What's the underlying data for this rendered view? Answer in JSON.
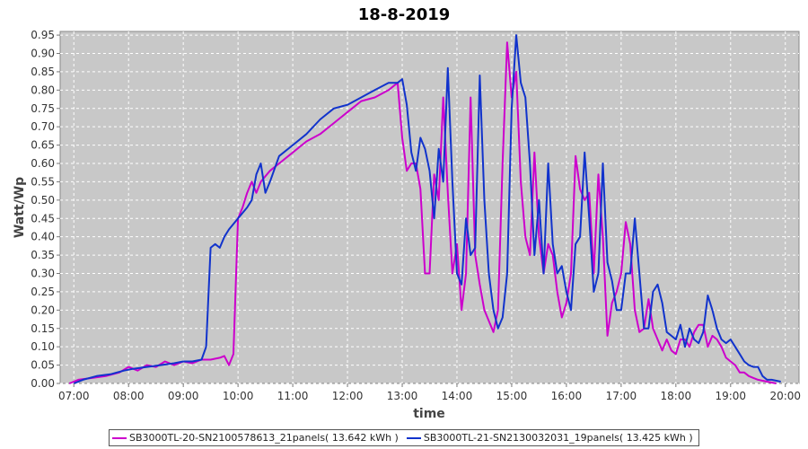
{
  "chart_data": {
    "type": "line",
    "title": "18-8-2019",
    "xlabel": "time",
    "ylabel": "Watt/Wp",
    "xlim": [
      "06:45",
      "20:15"
    ],
    "ylim": [
      0,
      0.96
    ],
    "x_ticks": [
      "07:00",
      "08:00",
      "09:00",
      "10:00",
      "11:00",
      "12:00",
      "13:00",
      "14:00",
      "15:00",
      "16:00",
      "17:00",
      "18:00",
      "19:00",
      "20:00"
    ],
    "y_ticks": [
      "0.00",
      "0.05",
      "0.10",
      "0.15",
      "0.20",
      "0.25",
      "0.30",
      "0.35",
      "0.40",
      "0.45",
      "0.50",
      "0.55",
      "0.60",
      "0.65",
      "0.70",
      "0.75",
      "0.80",
      "0.85",
      "0.90",
      "0.95"
    ],
    "grid": true,
    "legend_position": "bottom",
    "background": "#c8c8c8",
    "series": [
      {
        "name": "SB3000TL-20-SN2100578613_21panels( 13.642 kWh )",
        "color": "#cc00cc",
        "points": [
          [
            "06:55",
            0.0
          ],
          [
            "07:05",
            0.01
          ],
          [
            "07:20",
            0.015
          ],
          [
            "07:35",
            0.02
          ],
          [
            "07:50",
            0.03
          ],
          [
            "08:00",
            0.045
          ],
          [
            "08:10",
            0.035
          ],
          [
            "08:20",
            0.05
          ],
          [
            "08:30",
            0.045
          ],
          [
            "08:40",
            0.06
          ],
          [
            "08:50",
            0.05
          ],
          [
            "09:00",
            0.06
          ],
          [
            "09:10",
            0.055
          ],
          [
            "09:20",
            0.065
          ],
          [
            "09:30",
            0.065
          ],
          [
            "09:40",
            0.07
          ],
          [
            "09:45",
            0.075
          ],
          [
            "09:50",
            0.05
          ],
          [
            "09:55",
            0.08
          ],
          [
            "10:00",
            0.45
          ],
          [
            "10:05",
            0.48
          ],
          [
            "10:10",
            0.52
          ],
          [
            "10:15",
            0.55
          ],
          [
            "10:20",
            0.52
          ],
          [
            "10:25",
            0.55
          ],
          [
            "10:35",
            0.58
          ],
          [
            "10:45",
            0.6
          ],
          [
            "11:00",
            0.63
          ],
          [
            "11:15",
            0.66
          ],
          [
            "11:30",
            0.68
          ],
          [
            "11:45",
            0.71
          ],
          [
            "12:00",
            0.74
          ],
          [
            "12:15",
            0.77
          ],
          [
            "12:30",
            0.78
          ],
          [
            "12:45",
            0.8
          ],
          [
            "12:55",
            0.82
          ],
          [
            "13:00",
            0.67
          ],
          [
            "13:05",
            0.58
          ],
          [
            "13:10",
            0.6
          ],
          [
            "13:15",
            0.6
          ],
          [
            "13:20",
            0.53
          ],
          [
            "13:25",
            0.3
          ],
          [
            "13:30",
            0.3
          ],
          [
            "13:35",
            0.57
          ],
          [
            "13:40",
            0.5
          ],
          [
            "13:45",
            0.78
          ],
          [
            "13:50",
            0.52
          ],
          [
            "13:55",
            0.3
          ],
          [
            "14:00",
            0.38
          ],
          [
            "14:05",
            0.2
          ],
          [
            "14:10",
            0.3
          ],
          [
            "14:15",
            0.78
          ],
          [
            "14:20",
            0.35
          ],
          [
            "14:25",
            0.27
          ],
          [
            "14:30",
            0.2
          ],
          [
            "14:40",
            0.14
          ],
          [
            "14:45",
            0.2
          ],
          [
            "14:50",
            0.6
          ],
          [
            "14:55",
            0.93
          ],
          [
            "15:00",
            0.78
          ],
          [
            "15:05",
            0.85
          ],
          [
            "15:10",
            0.55
          ],
          [
            "15:15",
            0.4
          ],
          [
            "15:20",
            0.35
          ],
          [
            "15:25",
            0.63
          ],
          [
            "15:30",
            0.4
          ],
          [
            "15:35",
            0.3
          ],
          [
            "15:40",
            0.38
          ],
          [
            "15:45",
            0.35
          ],
          [
            "15:50",
            0.25
          ],
          [
            "15:55",
            0.18
          ],
          [
            "16:00",
            0.22
          ],
          [
            "16:05",
            0.3
          ],
          [
            "16:10",
            0.62
          ],
          [
            "16:15",
            0.53
          ],
          [
            "16:20",
            0.5
          ],
          [
            "16:25",
            0.52
          ],
          [
            "16:30",
            0.3
          ],
          [
            "16:35",
            0.57
          ],
          [
            "16:40",
            0.4
          ],
          [
            "16:45",
            0.13
          ],
          [
            "16:50",
            0.22
          ],
          [
            "16:55",
            0.25
          ],
          [
            "17:00",
            0.3
          ],
          [
            "17:05",
            0.44
          ],
          [
            "17:10",
            0.38
          ],
          [
            "17:15",
            0.2
          ],
          [
            "17:20",
            0.14
          ],
          [
            "17:25",
            0.15
          ],
          [
            "17:30",
            0.23
          ],
          [
            "17:35",
            0.15
          ],
          [
            "17:40",
            0.12
          ],
          [
            "17:45",
            0.09
          ],
          [
            "17:50",
            0.12
          ],
          [
            "17:55",
            0.09
          ],
          [
            "18:00",
            0.08
          ],
          [
            "18:05",
            0.12
          ],
          [
            "18:10",
            0.12
          ],
          [
            "18:15",
            0.1
          ],
          [
            "18:20",
            0.14
          ],
          [
            "18:25",
            0.16
          ],
          [
            "18:30",
            0.16
          ],
          [
            "18:35",
            0.1
          ],
          [
            "18:40",
            0.13
          ],
          [
            "18:45",
            0.12
          ],
          [
            "18:50",
            0.1
          ],
          [
            "18:55",
            0.07
          ],
          [
            "19:00",
            0.06
          ],
          [
            "19:05",
            0.05
          ],
          [
            "19:10",
            0.03
          ],
          [
            "19:15",
            0.03
          ],
          [
            "19:20",
            0.02
          ],
          [
            "19:25",
            0.015
          ],
          [
            "19:30",
            0.01
          ],
          [
            "19:40",
            0.005
          ],
          [
            "19:50",
            0.0
          ]
        ]
      },
      {
        "name": "SB3000TL-21-SN2130032031_19panels( 13.425 kWh )",
        "color": "#1133cc",
        "points": [
          [
            "07:00",
            0.0
          ],
          [
            "07:10",
            0.01
          ],
          [
            "07:25",
            0.02
          ],
          [
            "07:40",
            0.025
          ],
          [
            "07:55",
            0.035
          ],
          [
            "08:05",
            0.04
          ],
          [
            "08:20",
            0.045
          ],
          [
            "08:35",
            0.05
          ],
          [
            "08:50",
            0.055
          ],
          [
            "09:00",
            0.06
          ],
          [
            "09:10",
            0.06
          ],
          [
            "09:20",
            0.065
          ],
          [
            "09:25",
            0.1
          ],
          [
            "09:30",
            0.37
          ],
          [
            "09:35",
            0.38
          ],
          [
            "09:40",
            0.37
          ],
          [
            "09:45",
            0.4
          ],
          [
            "09:50",
            0.42
          ],
          [
            "10:00",
            0.45
          ],
          [
            "10:10",
            0.48
          ],
          [
            "10:15",
            0.5
          ],
          [
            "10:20",
            0.57
          ],
          [
            "10:25",
            0.6
          ],
          [
            "10:30",
            0.52
          ],
          [
            "10:35",
            0.55
          ],
          [
            "10:45",
            0.62
          ],
          [
            "11:00",
            0.65
          ],
          [
            "11:15",
            0.68
          ],
          [
            "11:30",
            0.72
          ],
          [
            "11:45",
            0.75
          ],
          [
            "12:00",
            0.76
          ],
          [
            "12:15",
            0.78
          ],
          [
            "12:30",
            0.8
          ],
          [
            "12:45",
            0.82
          ],
          [
            "12:55",
            0.82
          ],
          [
            "13:00",
            0.83
          ],
          [
            "13:05",
            0.76
          ],
          [
            "13:10",
            0.63
          ],
          [
            "13:15",
            0.58
          ],
          [
            "13:20",
            0.67
          ],
          [
            "13:25",
            0.64
          ],
          [
            "13:30",
            0.58
          ],
          [
            "13:35",
            0.45
          ],
          [
            "13:40",
            0.64
          ],
          [
            "13:45",
            0.55
          ],
          [
            "13:50",
            0.86
          ],
          [
            "13:55",
            0.55
          ],
          [
            "14:00",
            0.3
          ],
          [
            "14:05",
            0.27
          ],
          [
            "14:10",
            0.45
          ],
          [
            "14:15",
            0.35
          ],
          [
            "14:20",
            0.37
          ],
          [
            "14:25",
            0.84
          ],
          [
            "14:30",
            0.5
          ],
          [
            "14:35",
            0.3
          ],
          [
            "14:40",
            0.2
          ],
          [
            "14:45",
            0.15
          ],
          [
            "14:50",
            0.18
          ],
          [
            "14:55",
            0.3
          ],
          [
            "15:00",
            0.75
          ],
          [
            "15:05",
            0.95
          ],
          [
            "15:10",
            0.82
          ],
          [
            "15:15",
            0.78
          ],
          [
            "15:20",
            0.6
          ],
          [
            "15:25",
            0.35
          ],
          [
            "15:30",
            0.5
          ],
          [
            "15:35",
            0.3
          ],
          [
            "15:40",
            0.6
          ],
          [
            "15:45",
            0.38
          ],
          [
            "15:50",
            0.3
          ],
          [
            "15:55",
            0.32
          ],
          [
            "16:00",
            0.25
          ],
          [
            "16:05",
            0.2
          ],
          [
            "16:10",
            0.38
          ],
          [
            "16:15",
            0.4
          ],
          [
            "16:20",
            0.63
          ],
          [
            "16:25",
            0.45
          ],
          [
            "16:30",
            0.25
          ],
          [
            "16:35",
            0.3
          ],
          [
            "16:40",
            0.6
          ],
          [
            "16:45",
            0.33
          ],
          [
            "16:50",
            0.28
          ],
          [
            "16:55",
            0.2
          ],
          [
            "17:00",
            0.2
          ],
          [
            "17:05",
            0.3
          ],
          [
            "17:10",
            0.3
          ],
          [
            "17:15",
            0.45
          ],
          [
            "17:20",
            0.3
          ],
          [
            "17:25",
            0.15
          ],
          [
            "17:30",
            0.15
          ],
          [
            "17:35",
            0.25
          ],
          [
            "17:40",
            0.27
          ],
          [
            "17:45",
            0.22
          ],
          [
            "17:50",
            0.14
          ],
          [
            "17:55",
            0.13
          ],
          [
            "18:00",
            0.12
          ],
          [
            "18:05",
            0.16
          ],
          [
            "18:10",
            0.1
          ],
          [
            "18:15",
            0.15
          ],
          [
            "18:20",
            0.12
          ],
          [
            "18:25",
            0.11
          ],
          [
            "18:30",
            0.14
          ],
          [
            "18:35",
            0.24
          ],
          [
            "18:40",
            0.2
          ],
          [
            "18:45",
            0.15
          ],
          [
            "18:50",
            0.12
          ],
          [
            "18:55",
            0.11
          ],
          [
            "19:00",
            0.12
          ],
          [
            "19:05",
            0.1
          ],
          [
            "19:10",
            0.08
          ],
          [
            "19:15",
            0.06
          ],
          [
            "19:20",
            0.05
          ],
          [
            "19:25",
            0.045
          ],
          [
            "19:30",
            0.045
          ],
          [
            "19:35",
            0.02
          ],
          [
            "19:40",
            0.01
          ],
          [
            "19:45",
            0.01
          ],
          [
            "19:55",
            0.005
          ]
        ]
      }
    ]
  }
}
